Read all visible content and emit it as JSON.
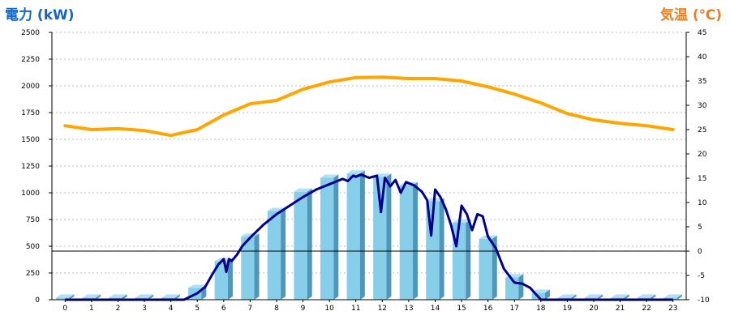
{
  "chart_data": {
    "type": "bar",
    "left_axis_title": "電力 (kW)",
    "right_axis_title": "気温 (℃)",
    "x": [
      "0",
      "1",
      "2",
      "3",
      "4",
      "5",
      "6",
      "7",
      "8",
      "9",
      "10",
      "11",
      "12",
      "13",
      "14",
      "15",
      "16",
      "17",
      "18",
      "19",
      "20",
      "21",
      "22",
      "23"
    ],
    "yleft_ticks": [
      "0",
      "250",
      "500",
      "750",
      "1000",
      "1250",
      "1500",
      "1750",
      "2000",
      "2250",
      "2500"
    ],
    "yright_ticks": [
      "-10",
      "-5",
      "0",
      "5",
      "10",
      "15",
      "20",
      "25",
      "30",
      "35",
      "40",
      "45"
    ],
    "yleft_range": [
      0,
      2500
    ],
    "yright_range": [
      -10,
      45
    ],
    "bar_series": {
      "axis": "left",
      "color": "#87ceeb",
      "values": [
        20,
        20,
        20,
        20,
        20,
        110,
        360,
        590,
        830,
        1010,
        1140,
        1180,
        1150,
        1070,
        920,
        720,
        570,
        210,
        65,
        20,
        20,
        20,
        20,
        20
      ]
    },
    "power_line": {
      "axis": "left",
      "color": "#00008b",
      "points": [
        [
          0,
          0
        ],
        [
          4,
          0
        ],
        [
          4.5,
          0
        ],
        [
          5,
          60
        ],
        [
          5.3,
          120
        ],
        [
          5.6,
          250
        ],
        [
          5.8,
          330
        ],
        [
          6,
          380
        ],
        [
          6.1,
          260
        ],
        [
          6.2,
          380
        ],
        [
          6.3,
          360
        ],
        [
          6.5,
          420
        ],
        [
          6.7,
          500
        ],
        [
          7,
          580
        ],
        [
          7.5,
          700
        ],
        [
          8,
          800
        ],
        [
          8.5,
          880
        ],
        [
          9,
          960
        ],
        [
          9.5,
          1030
        ],
        [
          10,
          1080
        ],
        [
          10.3,
          1110
        ],
        [
          10.5,
          1130
        ],
        [
          10.7,
          1110
        ],
        [
          10.9,
          1160
        ],
        [
          11,
          1150
        ],
        [
          11.2,
          1170
        ],
        [
          11.5,
          1140
        ],
        [
          11.8,
          1160
        ],
        [
          11.95,
          820
        ],
        [
          12.1,
          1140
        ],
        [
          12.3,
          1060
        ],
        [
          12.5,
          1120
        ],
        [
          12.7,
          1000
        ],
        [
          12.9,
          1100
        ],
        [
          13.2,
          1070
        ],
        [
          13.5,
          1010
        ],
        [
          13.7,
          930
        ],
        [
          13.85,
          600
        ],
        [
          14,
          1030
        ],
        [
          14.2,
          960
        ],
        [
          14.4,
          850
        ],
        [
          14.6,
          700
        ],
        [
          14.8,
          500
        ],
        [
          15,
          880
        ],
        [
          15.2,
          800
        ],
        [
          15.4,
          650
        ],
        [
          15.6,
          800
        ],
        [
          15.8,
          780
        ],
        [
          16,
          590
        ],
        [
          16.3,
          480
        ],
        [
          16.6,
          290
        ],
        [
          17,
          160
        ],
        [
          17.3,
          150
        ],
        [
          17.6,
          110
        ],
        [
          18,
          0
        ],
        [
          23,
          0
        ]
      ]
    },
    "temperature_line": {
      "axis": "right",
      "color": "#ffa500",
      "points": [
        [
          0,
          25.8
        ],
        [
          1,
          25.0
        ],
        [
          2,
          25.2
        ],
        [
          3,
          24.8
        ],
        [
          4,
          23.8
        ],
        [
          5,
          25.0
        ],
        [
          6,
          28.0
        ],
        [
          7,
          30.3
        ],
        [
          8,
          31.0
        ],
        [
          9,
          33.3
        ],
        [
          10,
          34.8
        ],
        [
          11,
          35.7
        ],
        [
          12,
          35.8
        ],
        [
          13,
          35.5
        ],
        [
          14,
          35.5
        ],
        [
          15,
          35.0
        ],
        [
          16,
          33.8
        ],
        [
          17,
          32.3
        ],
        [
          18,
          30.5
        ],
        [
          19,
          28.3
        ],
        [
          20,
          27.0
        ],
        [
          21,
          26.3
        ],
        [
          22,
          25.8
        ],
        [
          23,
          25.0
        ]
      ]
    },
    "grid": "horizontal-dotted",
    "reference_line": {
      "axis": "right",
      "value": 0
    }
  }
}
